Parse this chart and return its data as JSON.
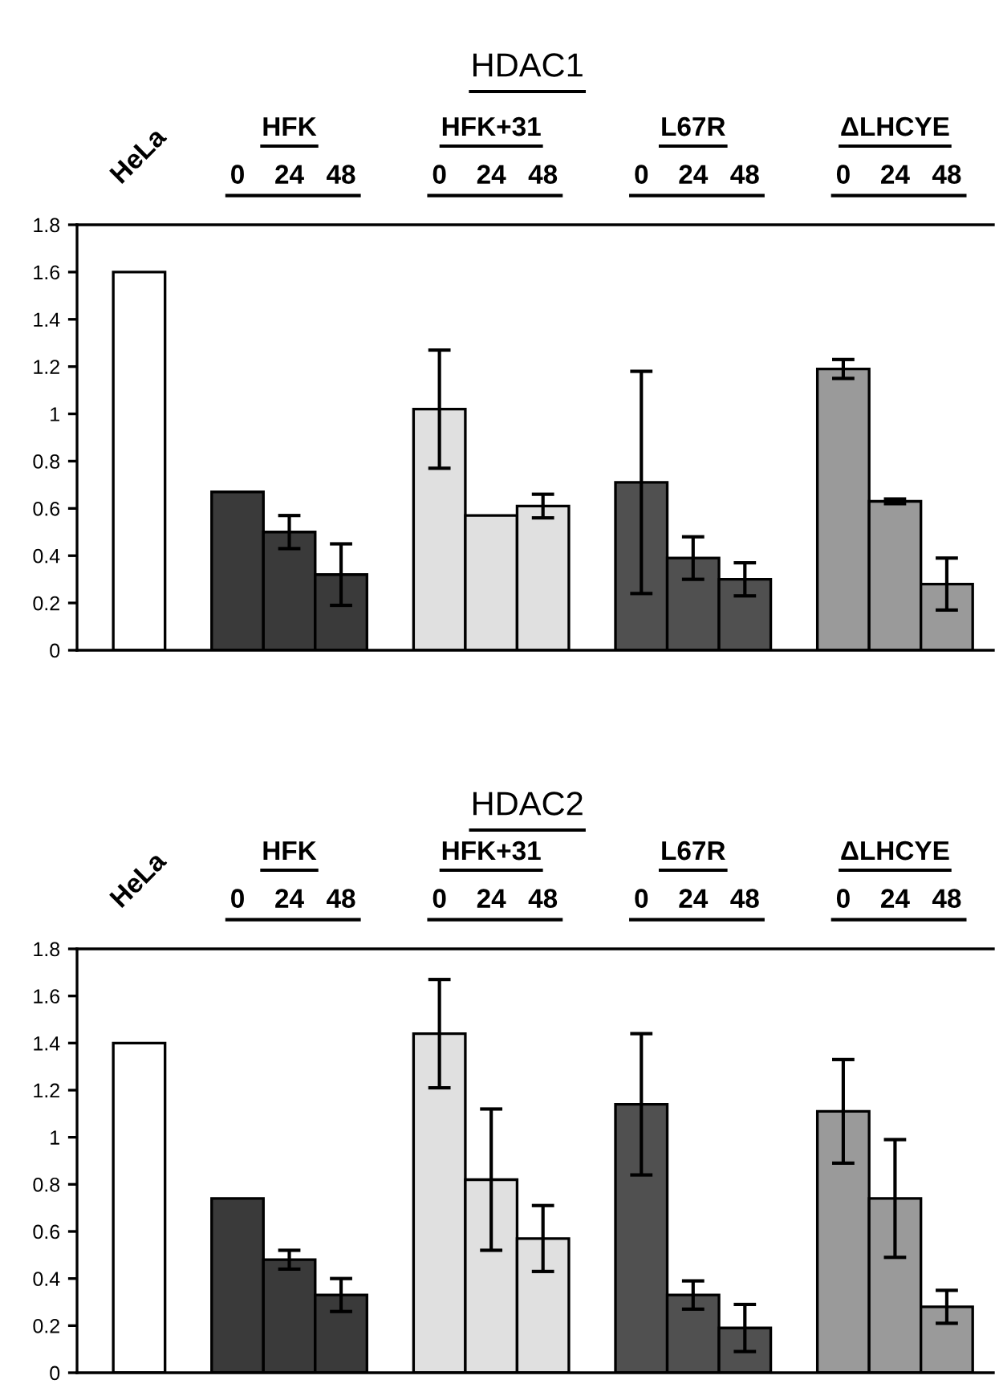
{
  "chart_data": [
    {
      "type": "bar",
      "title": "HDAC1",
      "annotations": [
        "HFK",
        "HFK+31",
        "L67R",
        "ΔLHCYE"
      ],
      "categories": [
        "HeLa",
        "0",
        "24",
        "48",
        "0",
        "24",
        "48",
        "0",
        "24",
        "48",
        "0",
        "24",
        "48"
      ],
      "ylim": [
        0,
        1.8
      ],
      "yticks": [
        0,
        0.2,
        0.4,
        0.6,
        0.8,
        1,
        1.2,
        1.4,
        1.6,
        1.8
      ],
      "grid": false,
      "series": [
        {
          "color": "#ffffff",
          "values": [
            1.6,
            null,
            null,
            null,
            null,
            null,
            null,
            null,
            null,
            null,
            null,
            null,
            null
          ]
        },
        {
          "color": "#3a3a3a",
          "values": [
            null,
            0.67,
            0.5,
            0.32,
            null,
            null,
            null,
            null,
            null,
            null,
            null,
            null,
            null
          ],
          "errors": [
            null,
            null,
            0.07,
            0.13,
            null,
            null,
            null,
            null,
            null,
            null,
            null,
            null,
            null
          ]
        },
        {
          "color": "#e0e0e0",
          "values": [
            null,
            null,
            null,
            null,
            1.02,
            0.57,
            0.61,
            null,
            null,
            null,
            null,
            null,
            null
          ],
          "errors": [
            null,
            null,
            null,
            null,
            0.25,
            null,
            0.05,
            null,
            null,
            null,
            null,
            null,
            null
          ]
        },
        {
          "color": "#505050",
          "values": [
            null,
            null,
            null,
            null,
            null,
            null,
            null,
            0.71,
            0.39,
            0.3,
            null,
            null,
            null
          ],
          "errors": [
            null,
            null,
            null,
            null,
            null,
            null,
            null,
            0.47,
            0.09,
            0.07,
            null,
            null,
            null
          ]
        },
        {
          "color": "#9a9a9a",
          "values": [
            null,
            null,
            null,
            null,
            null,
            null,
            null,
            null,
            null,
            null,
            1.19,
            0.63,
            0.28
          ],
          "errors": [
            null,
            null,
            null,
            null,
            null,
            null,
            null,
            null,
            null,
            null,
            0.04,
            0.01,
            0.11
          ]
        }
      ]
    },
    {
      "type": "bar",
      "title": "HDAC2",
      "annotations": [
        "HFK",
        "HFK+31",
        "L67R",
        "ΔLHCYE"
      ],
      "categories": [
        "HeLa",
        "0",
        "24",
        "48",
        "0",
        "24",
        "48",
        "0",
        "24",
        "48",
        "0",
        "24",
        "48"
      ],
      "ylim": [
        0,
        1.8
      ],
      "yticks": [
        0,
        0.2,
        0.4,
        0.6,
        0.8,
        1,
        1.2,
        1.4,
        1.6,
        1.8
      ],
      "grid": false,
      "series": [
        {
          "color": "#ffffff",
          "values": [
            1.4,
            null,
            null,
            null,
            null,
            null,
            null,
            null,
            null,
            null,
            null,
            null,
            null
          ]
        },
        {
          "color": "#3a3a3a",
          "values": [
            null,
            0.74,
            0.48,
            0.33,
            null,
            null,
            null,
            null,
            null,
            null,
            null,
            null,
            null
          ],
          "errors": [
            null,
            null,
            0.04,
            0.07,
            null,
            null,
            null,
            null,
            null,
            null,
            null,
            null,
            null
          ]
        },
        {
          "color": "#e0e0e0",
          "values": [
            null,
            null,
            null,
            null,
            1.44,
            0.82,
            0.57,
            null,
            null,
            null,
            null,
            null,
            null
          ],
          "errors": [
            null,
            null,
            null,
            null,
            0.23,
            0.3,
            0.14,
            null,
            null,
            null,
            null,
            null,
            null
          ]
        },
        {
          "color": "#505050",
          "values": [
            null,
            null,
            null,
            null,
            null,
            null,
            null,
            1.14,
            0.33,
            0.19,
            null,
            null,
            null
          ],
          "errors": [
            null,
            null,
            null,
            null,
            null,
            null,
            null,
            0.3,
            0.06,
            0.1,
            null,
            null,
            null
          ]
        },
        {
          "color": "#9a9a9a",
          "values": [
            null,
            null,
            null,
            null,
            null,
            null,
            null,
            null,
            null,
            null,
            1.11,
            0.74,
            0.28
          ],
          "errors": [
            null,
            null,
            null,
            null,
            null,
            null,
            null,
            null,
            null,
            null,
            0.22,
            0.25,
            0.07
          ]
        }
      ]
    }
  ]
}
